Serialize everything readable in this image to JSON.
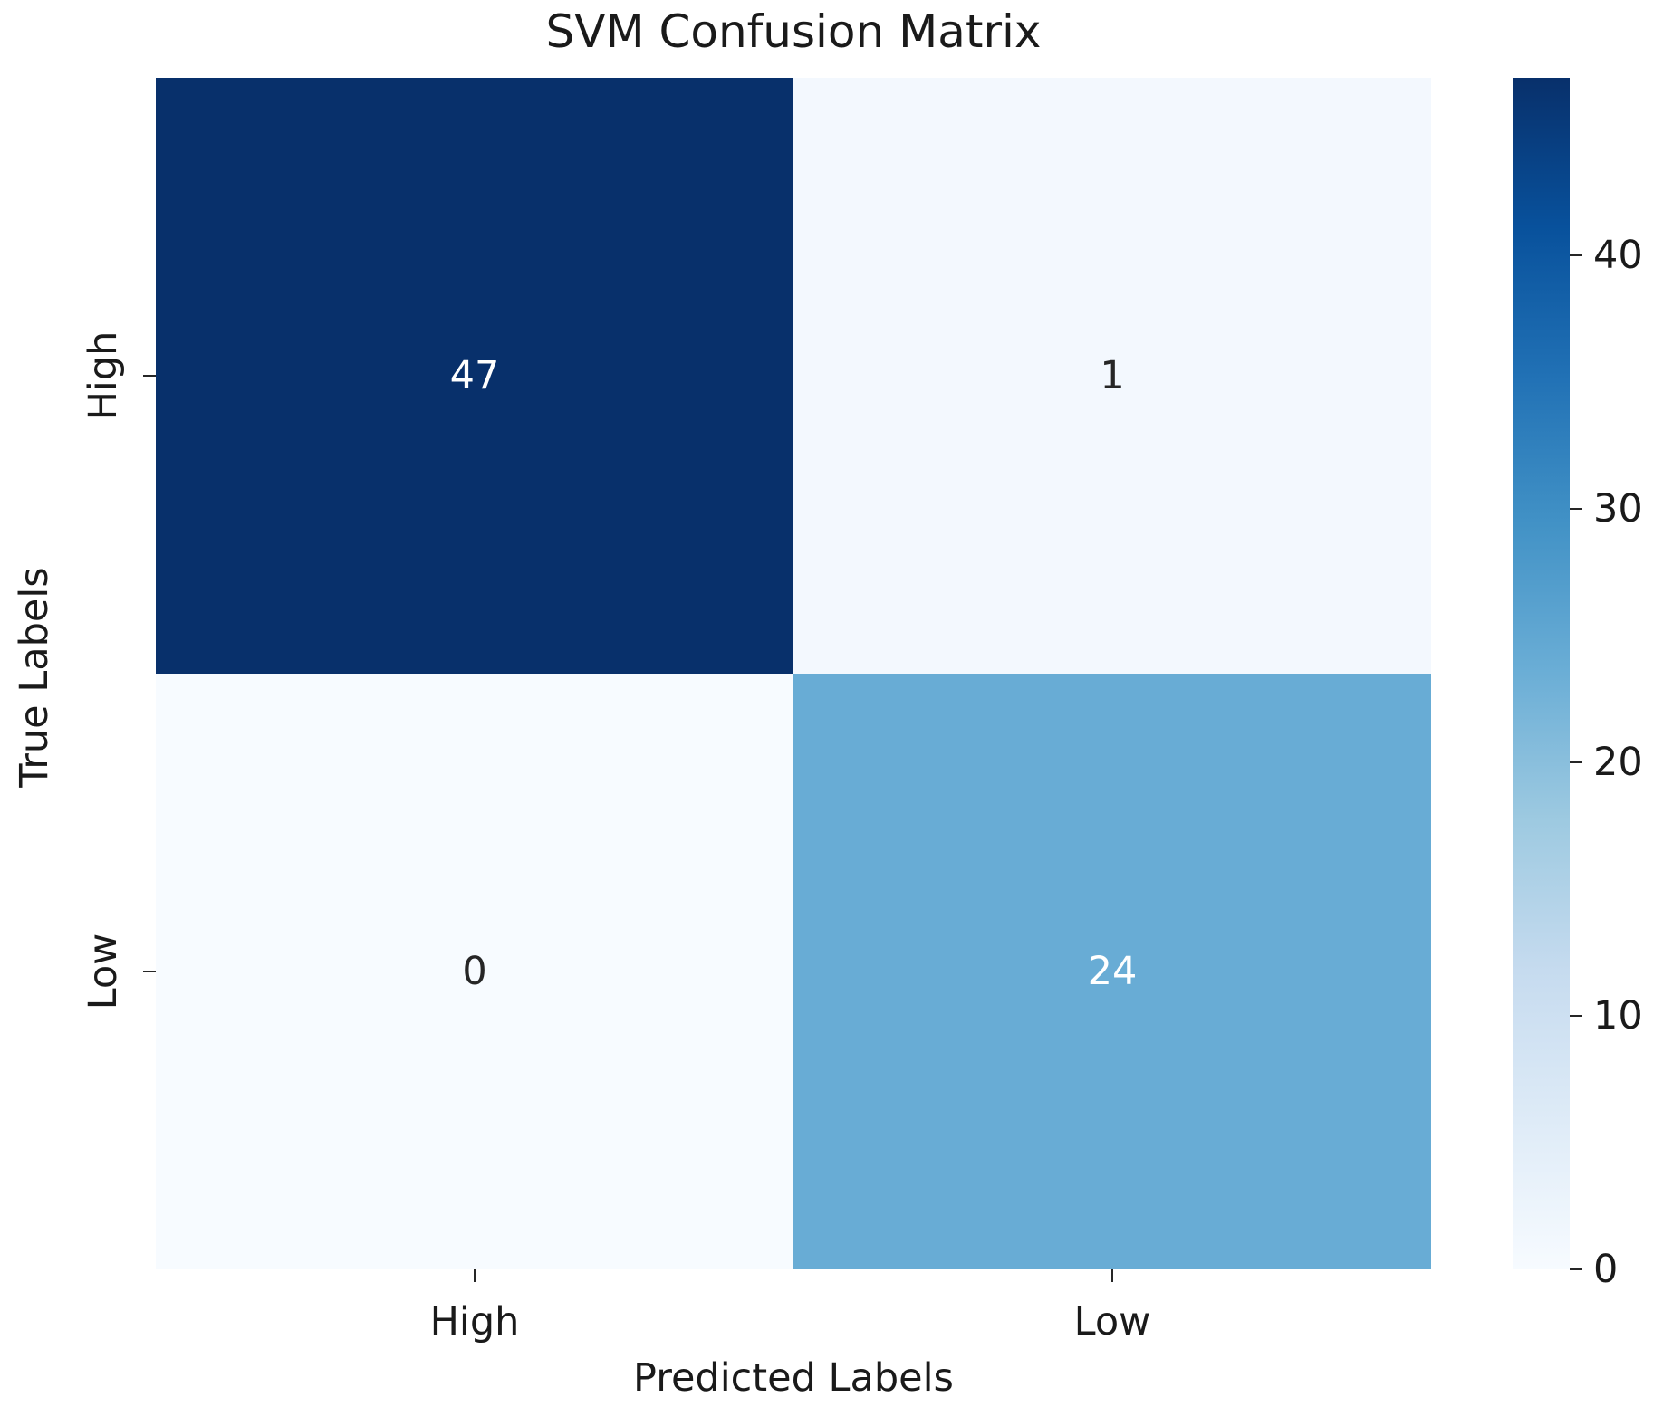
{
  "chart_data": {
    "type": "heatmap",
    "title": "SVM Confusion Matrix",
    "xlabel": "Predicted Labels",
    "ylabel": "True Labels",
    "x_categories": [
      "High",
      "Low"
    ],
    "y_categories": [
      "High",
      "Low"
    ],
    "values": [
      [
        47,
        1
      ],
      [
        0,
        24
      ]
    ],
    "colorbar": {
      "min": 0,
      "max": 47,
      "ticks": [
        0,
        10,
        20,
        30,
        40
      ],
      "colormap": "Blues"
    },
    "grid": false
  }
}
